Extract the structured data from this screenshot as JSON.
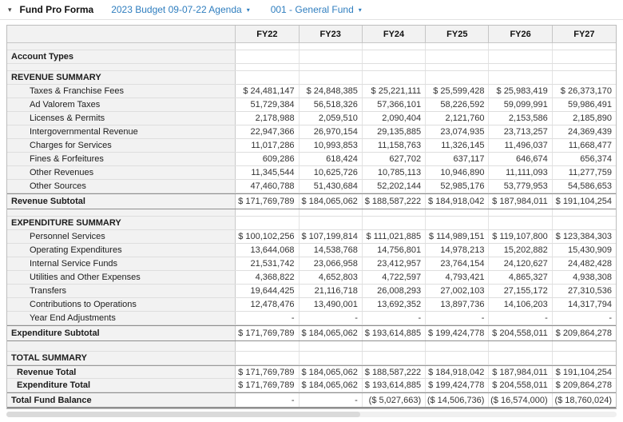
{
  "header": {
    "title": "Fund Pro Forma",
    "budget_dropdown": "2023 Budget 09-07-22 Agenda",
    "fund_dropdown": "001 - General Fund"
  },
  "icons": {
    "collapse_caret": "▾",
    "dropdown_caret": "▾"
  },
  "colors": {
    "accent_blue": "#2f7ebf",
    "header_bg": "#f2f2f2",
    "border_dark": "#8f8f8f"
  },
  "table": {
    "columns": [
      "FY22",
      "FY23",
      "FY24",
      "FY25",
      "FY26",
      "FY27"
    ],
    "rows": [
      {
        "kind": "spacer",
        "label": "",
        "cells": [
          "",
          "",
          "",
          "",
          "",
          ""
        ]
      },
      {
        "kind": "section",
        "label": "Account Types",
        "cells": [
          "",
          "",
          "",
          "",
          "",
          ""
        ]
      },
      {
        "kind": "spacer",
        "label": "",
        "cells": [
          "",
          "",
          "",
          "",
          "",
          ""
        ]
      },
      {
        "kind": "section",
        "label": "REVENUE SUMMARY",
        "cells": [
          "",
          "",
          "",
          "",
          "",
          ""
        ]
      },
      {
        "kind": "item",
        "label": "Taxes & Franchise Fees",
        "cells": [
          "$ 24,481,147",
          "$ 24,848,385",
          "$ 25,221,111",
          "$ 25,599,428",
          "$ 25,983,419",
          "$ 26,373,170"
        ]
      },
      {
        "kind": "item",
        "label": "Ad Valorem Taxes",
        "cells": [
          "51,729,384",
          "56,518,326",
          "57,366,101",
          "58,226,592",
          "59,099,991",
          "59,986,491"
        ]
      },
      {
        "kind": "item",
        "label": "Licenses & Permits",
        "cells": [
          "2,178,988",
          "2,059,510",
          "2,090,404",
          "2,121,760",
          "2,153,586",
          "2,185,890"
        ]
      },
      {
        "kind": "item",
        "label": "Intergovernmental Revenue",
        "cells": [
          "22,947,366",
          "26,970,154",
          "29,135,885",
          "23,074,935",
          "23,713,257",
          "24,369,439"
        ]
      },
      {
        "kind": "item",
        "label": "Charges for Services",
        "cells": [
          "11,017,286",
          "10,993,853",
          "11,158,763",
          "11,326,145",
          "11,496,037",
          "11,668,477"
        ]
      },
      {
        "kind": "item",
        "label": "Fines & Forfeitures",
        "cells": [
          "609,286",
          "618,424",
          "627,702",
          "637,117",
          "646,674",
          "656,374"
        ]
      },
      {
        "kind": "item",
        "label": "Other Revenues",
        "cells": [
          "11,345,544",
          "10,625,726",
          "10,785,113",
          "10,946,890",
          "11,111,093",
          "11,277,759"
        ]
      },
      {
        "kind": "item",
        "label": "Other Sources",
        "cells": [
          "47,460,788",
          "51,430,684",
          "52,202,144",
          "52,985,176",
          "53,779,953",
          "54,586,653"
        ]
      },
      {
        "kind": "subtotal",
        "label": "Revenue Subtotal",
        "cells": [
          "$ 171,769,789",
          "$ 184,065,062",
          "$ 188,587,222",
          "$ 184,918,042",
          "$ 187,984,011",
          "$ 191,104,254"
        ]
      },
      {
        "kind": "spacer",
        "label": "",
        "cells": [
          "",
          "",
          "",
          "",
          "",
          ""
        ]
      },
      {
        "kind": "section",
        "label": "EXPENDITURE SUMMARY",
        "cells": [
          "",
          "",
          "",
          "",
          "",
          ""
        ]
      },
      {
        "kind": "item",
        "label": "Personnel Services",
        "cells": [
          "$ 100,102,256",
          "$ 107,199,814",
          "$ 111,021,885",
          "$ 114,989,151",
          "$ 119,107,800",
          "$ 123,384,303"
        ]
      },
      {
        "kind": "item",
        "label": "Operating Expenditures",
        "cells": [
          "13,644,068",
          "14,538,768",
          "14,756,801",
          "14,978,213",
          "15,202,882",
          "15,430,909"
        ]
      },
      {
        "kind": "item",
        "label": "Internal Service Funds",
        "cells": [
          "21,531,742",
          "23,066,958",
          "23,412,957",
          "23,764,154",
          "24,120,627",
          "24,482,428"
        ]
      },
      {
        "kind": "item",
        "label": "Utilities and Other Expenses",
        "cells": [
          "4,368,822",
          "4,652,803",
          "4,722,597",
          "4,793,421",
          "4,865,327",
          "4,938,308"
        ]
      },
      {
        "kind": "item",
        "label": "Transfers",
        "cells": [
          "19,644,425",
          "21,116,718",
          "26,008,293",
          "27,002,103",
          "27,155,172",
          "27,310,536"
        ]
      },
      {
        "kind": "item",
        "label": "Contributions to Operations",
        "cells": [
          "12,478,476",
          "13,490,001",
          "13,692,352",
          "13,897,736",
          "14,106,203",
          "14,317,794"
        ]
      },
      {
        "kind": "item",
        "label": "Year End Adjustments",
        "cells": [
          "-",
          "-",
          "-",
          "-",
          "-",
          "-"
        ]
      },
      {
        "kind": "subtotal",
        "label": "Expenditure Subtotal",
        "cells": [
          "$ 171,769,789",
          "$ 184,065,062",
          "$ 193,614,885",
          "$ 199,424,778",
          "$ 204,558,011",
          "$ 209,864,278"
        ]
      },
      {
        "kind": "gap",
        "label": "",
        "cells": [
          "",
          "",
          "",
          "",
          "",
          ""
        ]
      },
      {
        "kind": "section",
        "label": "TOTAL SUMMARY",
        "cells": [
          "",
          "",
          "",
          "",
          "",
          ""
        ]
      },
      {
        "kind": "totalitem totalfirst",
        "label": "Revenue Total",
        "cells": [
          "$ 171,769,789",
          "$ 184,065,062",
          "$ 188,587,222",
          "$ 184,918,042",
          "$ 187,984,011",
          "$ 191,104,254"
        ]
      },
      {
        "kind": "totalitem",
        "label": "Expenditure Total",
        "cells": [
          "$ 171,769,789",
          "$ 184,065,062",
          "$ 193,614,885",
          "$ 199,424,778",
          "$ 204,558,011",
          "$ 209,864,278"
        ]
      },
      {
        "kind": "grand",
        "label": "Total Fund Balance",
        "cells": [
          "-",
          "-",
          "($ 5,027,663)",
          "($ 14,506,736)",
          "($ 16,574,000)",
          "($ 18,760,024)"
        ]
      }
    ]
  }
}
